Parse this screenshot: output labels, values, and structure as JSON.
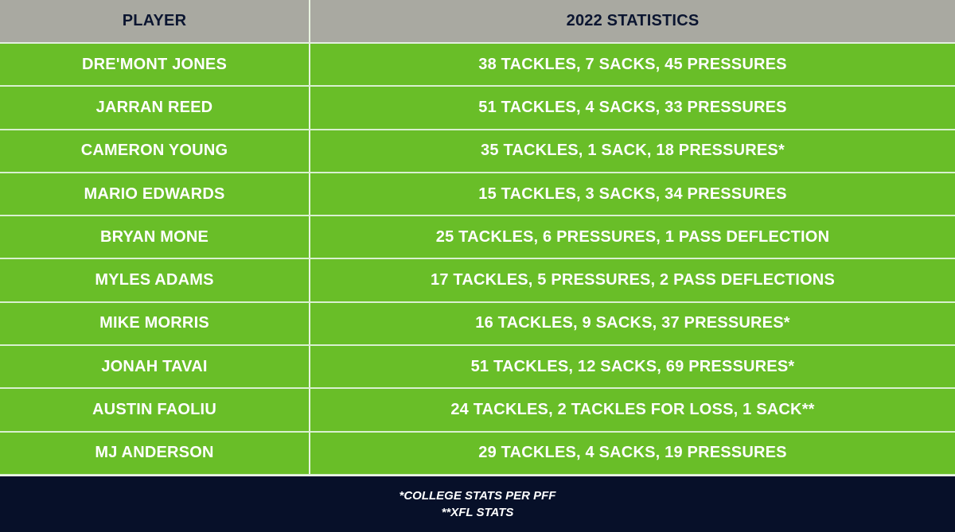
{
  "table": {
    "headers": {
      "player": "PLAYER",
      "stats": "2022 STATISTICS"
    },
    "rows": [
      {
        "player": "DRE'MONT JONES",
        "stats": "38 TACKLES, 7 SACKS, 45 PRESSURES"
      },
      {
        "player": "JARRAN REED",
        "stats": "51 TACKLES, 4 SACKS, 33 PRESSURES"
      },
      {
        "player": "CAMERON YOUNG",
        "stats": "35 TACKLES, 1 SACK, 18 PRESSURES*"
      },
      {
        "player": "MARIO EDWARDS",
        "stats": "15 TACKLES, 3 SACKS, 34 PRESSURES"
      },
      {
        "player": "BRYAN MONE",
        "stats": "25 TACKLES, 6 PRESSURES, 1 PASS DEFLECTION"
      },
      {
        "player": "MYLES ADAMS",
        "stats": "17 TACKLES, 5 PRESSURES, 2 PASS DEFLECTIONS"
      },
      {
        "player": "MIKE MORRIS",
        "stats": "16 TACKLES, 9 SACKS, 37 PRESSURES*"
      },
      {
        "player": "JONAH TAVAI",
        "stats": "51 TACKLES, 12 SACKS, 69 PRESSURES*"
      },
      {
        "player": "AUSTIN FAOLIU",
        "stats": "24 TACKLES, 2 TACKLES FOR LOSS, 1 SACK**"
      },
      {
        "player": "MJ ANDERSON",
        "stats": "29 TACKLES, 4 SACKS, 19 PRESSURES"
      }
    ]
  },
  "footer": {
    "notes": [
      "*COLLEGE STATS PER PFF",
      "**XFL STATS"
    ]
  },
  "colors": {
    "header_bg": "#a9a9a1",
    "header_text": "#0b1530",
    "row_bg": "#69be28",
    "row_text": "#ffffff",
    "footer_bg": "#071029"
  }
}
